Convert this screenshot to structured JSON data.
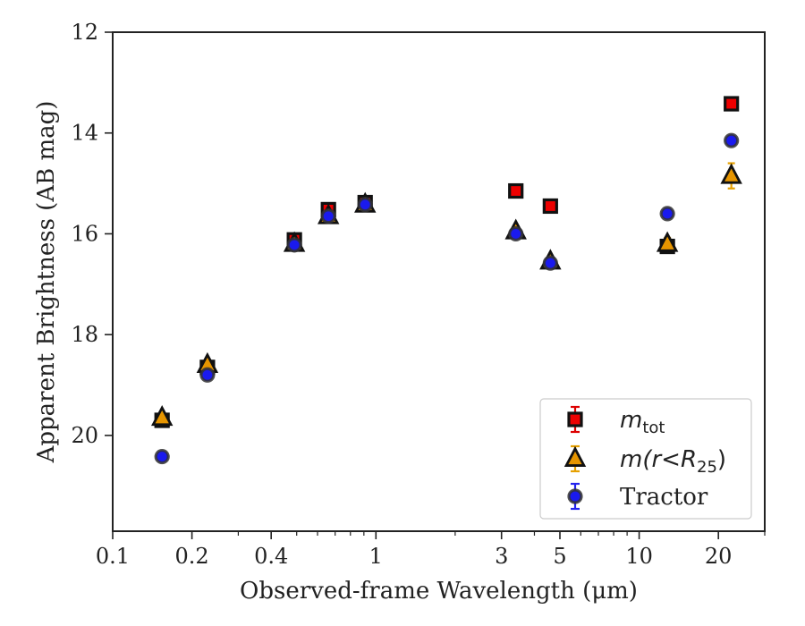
{
  "chart_data": {
    "type": "scatter",
    "title": "",
    "xlabel": "Observed-frame Wavelength (μm)",
    "ylabel": "Apparent Brightness (AB mag)",
    "x_scale": "log",
    "xlim": [
      0.1,
      30
    ],
    "ylim": [
      21.9,
      12
    ],
    "y_inverted": true,
    "grid": false,
    "legend_position": "bottom-right",
    "x_ticks": [
      0.1,
      0.2,
      0.4,
      1,
      3,
      5,
      10,
      20
    ],
    "x_tick_labels": [
      "0.1",
      "0.2",
      "0.4",
      "1",
      "3",
      "5",
      "10",
      "20"
    ],
    "y_ticks": [
      12,
      14,
      16,
      18,
      20
    ],
    "y_tick_labels": [
      "12",
      "14",
      "16",
      "18",
      "20"
    ],
    "series": [
      {
        "name": "m_tot",
        "label_math": "m",
        "label_sub": "tot",
        "marker": "square",
        "color": "#ee0000",
        "errcolor": "#dd0000",
        "points": [
          {
            "x": 0.154,
            "y": 19.7,
            "err": 0.05
          },
          {
            "x": 0.229,
            "y": 18.65,
            "err": 0.05
          },
          {
            "x": 0.49,
            "y": 16.12,
            "err": 0.04
          },
          {
            "x": 0.66,
            "y": 15.52,
            "err": 0.04
          },
          {
            "x": 0.91,
            "y": 15.38,
            "err": 0.04
          },
          {
            "x": 3.4,
            "y": 15.15,
            "err": 0.03
          },
          {
            "x": 4.6,
            "y": 15.45,
            "err": 0.03
          },
          {
            "x": 12.8,
            "y": 16.25,
            "err": 0.06
          },
          {
            "x": 22.4,
            "y": 13.42,
            "err": 0.05
          }
        ]
      },
      {
        "name": "m(r<R25)",
        "label_math": "m(r<R",
        "label_sub": "25",
        "label_tail": ")",
        "marker": "triangle",
        "color": "#e69500",
        "errcolor": "#e6a000",
        "points": [
          {
            "x": 0.154,
            "y": 19.65,
            "err": 0.05
          },
          {
            "x": 0.229,
            "y": 18.6,
            "err": 0.05
          },
          {
            "x": 0.49,
            "y": 16.2,
            "err": 0.04
          },
          {
            "x": 0.66,
            "y": 15.65,
            "err": 0.04
          },
          {
            "x": 0.91,
            "y": 15.42,
            "err": 0.04
          },
          {
            "x": 3.4,
            "y": 15.95,
            "err": 0.03
          },
          {
            "x": 4.6,
            "y": 16.55,
            "err": 0.03
          },
          {
            "x": 12.8,
            "y": 16.2,
            "err": 0.12
          },
          {
            "x": 22.4,
            "y": 14.85,
            "err": 0.25
          }
        ]
      },
      {
        "name": "Tractor",
        "label_text": "Tractor",
        "marker": "circle",
        "color": "#1a1aee",
        "errcolor": "#2222ee",
        "points": [
          {
            "x": 0.154,
            "y": 20.42,
            "err": 0.04
          },
          {
            "x": 0.229,
            "y": 18.8,
            "err": 0.04
          },
          {
            "x": 0.49,
            "y": 16.22,
            "err": 0.03
          },
          {
            "x": 0.66,
            "y": 15.65,
            "err": 0.03
          },
          {
            "x": 0.91,
            "y": 15.42,
            "err": 0.03
          },
          {
            "x": 3.4,
            "y": 16.0,
            "err": 0.03
          },
          {
            "x": 4.6,
            "y": 16.58,
            "err": 0.03
          },
          {
            "x": 12.8,
            "y": 15.6,
            "err": 0.05
          },
          {
            "x": 22.4,
            "y": 14.15,
            "err": 0.06
          }
        ]
      }
    ]
  }
}
